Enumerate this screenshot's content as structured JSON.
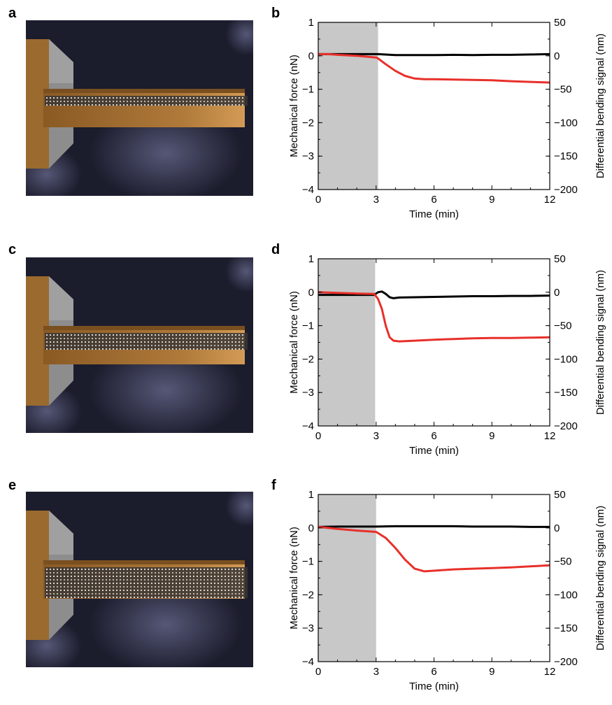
{
  "panels": {
    "a": "a",
    "b": "b",
    "c": "c",
    "d": "d",
    "e": "e",
    "f": "f"
  },
  "colors": {
    "force": "#000000",
    "bending": "#e8302a",
    "shade": "#c8c8c8",
    "render_bg": "#1a1a2e",
    "gold": "#b97a35",
    "steel": "#8a8a8a"
  },
  "renders": [
    {
      "name": "cantilever-render-a",
      "molecule_rows": 2
    },
    {
      "name": "cantilever-render-c",
      "molecule_rows": 4
    },
    {
      "name": "cantilever-render-e",
      "molecule_rows": 8
    }
  ],
  "chart_data": [
    {
      "panel": "b",
      "type": "line",
      "xlabel": "Time (min)",
      "ylabel_left": "Mechanical force (nN)",
      "ylabel_right": "Differential bending signal (nm)",
      "xlim": [
        0,
        12
      ],
      "ylim_left": [
        -4,
        1
      ],
      "ylim_right": [
        -200,
        50
      ],
      "xticks": [
        0,
        3,
        6,
        9,
        12
      ],
      "yticks_left": [
        1,
        0,
        -1,
        -2,
        -3,
        -4
      ],
      "yticks_right": [
        50,
        0,
        -50,
        -100,
        -150,
        -200
      ],
      "shaded_region": [
        0,
        3.1
      ],
      "series": [
        {
          "axis": "left",
          "color": "black",
          "x": [
            0,
            1,
            2,
            3,
            3.1,
            4,
            5,
            6,
            7,
            8,
            9,
            10,
            11,
            12
          ],
          "y": [
            0.05,
            0.05,
            0.05,
            0.05,
            0.05,
            0.02,
            0.02,
            0.02,
            0.03,
            0.02,
            0.03,
            0.03,
            0.04,
            0.05
          ]
        },
        {
          "axis": "left",
          "color": "red",
          "x": [
            0,
            0.5,
            1,
            2,
            3,
            3.1,
            3.5,
            4,
            4.5,
            5,
            5.5,
            6,
            7,
            8,
            9,
            10,
            11,
            12
          ],
          "y": [
            0.05,
            0.05,
            0.03,
            0.0,
            -0.05,
            -0.08,
            -0.25,
            -0.45,
            -0.6,
            -0.68,
            -0.7,
            -0.7,
            -0.71,
            -0.72,
            -0.73,
            -0.76,
            -0.78,
            -0.8
          ]
        }
      ]
    },
    {
      "panel": "d",
      "type": "line",
      "xlabel": "Time (min)",
      "ylabel_left": "Mechanical force (nN)",
      "ylabel_right": "Differential bending signal (nm)",
      "xlim": [
        0,
        12
      ],
      "ylim_left": [
        -4,
        1
      ],
      "ylim_right": [
        -200,
        50
      ],
      "xticks": [
        0,
        3,
        6,
        9,
        12
      ],
      "yticks_left": [
        1,
        0,
        -1,
        -2,
        -3,
        -4
      ],
      "yticks_right": [
        50,
        0,
        -50,
        -100,
        -150,
        -200
      ],
      "shaded_region": [
        0,
        2.95
      ],
      "series": [
        {
          "axis": "left",
          "color": "black",
          "x": [
            0,
            1,
            2,
            2.9,
            3.1,
            3.3,
            3.5,
            3.7,
            3.9,
            4.2,
            5,
            6,
            7,
            8,
            9,
            10,
            11,
            12
          ],
          "y": [
            -0.08,
            -0.08,
            -0.08,
            -0.08,
            0.0,
            0.02,
            -0.05,
            -0.15,
            -0.18,
            -0.16,
            -0.15,
            -0.14,
            -0.13,
            -0.12,
            -0.12,
            -0.11,
            -0.11,
            -0.1
          ]
        },
        {
          "axis": "left",
          "color": "red",
          "x": [
            0,
            1,
            2,
            2.9,
            3.1,
            3.3,
            3.5,
            3.7,
            3.9,
            4.2,
            5,
            6,
            7,
            8,
            9,
            10,
            11,
            12
          ],
          "y": [
            0.0,
            -0.02,
            -0.04,
            -0.05,
            -0.2,
            -0.5,
            -1.0,
            -1.35,
            -1.45,
            -1.47,
            -1.45,
            -1.42,
            -1.4,
            -1.38,
            -1.37,
            -1.37,
            -1.36,
            -1.35
          ]
        }
      ]
    },
    {
      "panel": "f",
      "type": "line",
      "xlabel": "Time (min)",
      "ylabel_left": "Mechanical force (nN)",
      "ylabel_right": "Differential bending signal (nm)",
      "xlim": [
        0,
        12
      ],
      "ylim_left": [
        -4,
        1
      ],
      "ylim_right": [
        -200,
        50
      ],
      "xticks": [
        0,
        3,
        6,
        9,
        12
      ],
      "yticks_left": [
        1,
        0,
        -1,
        -2,
        -3,
        -4
      ],
      "yticks_right": [
        50,
        0,
        -50,
        -100,
        -150,
        -200
      ],
      "shaded_region": [
        0,
        3.0
      ],
      "series": [
        {
          "axis": "left",
          "color": "black",
          "x": [
            0,
            1,
            2,
            3,
            4,
            5,
            6,
            7,
            8,
            9,
            10,
            11,
            12
          ],
          "y": [
            0.03,
            0.04,
            0.04,
            0.04,
            0.05,
            0.05,
            0.05,
            0.05,
            0.04,
            0.04,
            0.04,
            0.03,
            0.03
          ]
        },
        {
          "axis": "left",
          "color": "red",
          "x": [
            0,
            0.5,
            1,
            2,
            3,
            3.5,
            4,
            4.5,
            5,
            5.5,
            6,
            6.5,
            7,
            8,
            9,
            10,
            11,
            12
          ],
          "y": [
            0.03,
            0.0,
            -0.03,
            -0.08,
            -0.12,
            -0.3,
            -0.6,
            -0.95,
            -1.22,
            -1.3,
            -1.28,
            -1.26,
            -1.24,
            -1.22,
            -1.2,
            -1.18,
            -1.15,
            -1.12
          ]
        }
      ]
    }
  ]
}
